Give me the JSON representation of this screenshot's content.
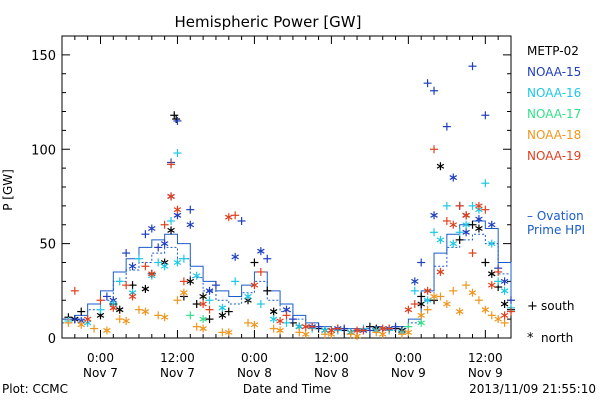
{
  "chart_data": {
    "type": "scatter",
    "title": "Hemispheric Power [GW]",
    "ylabel": "P [GW]",
    "xlabel": "Date and Time",
    "ylim": [
      0,
      160
    ],
    "yticks": [
      0,
      50,
      100,
      150
    ],
    "xlim_hours": [
      -6,
      64
    ],
    "xticks": [
      {
        "hour": 0,
        "time": "0:00",
        "date": "Nov 7"
      },
      {
        "hour": 12,
        "time": "12:00",
        "date": "Nov 7"
      },
      {
        "hour": 24,
        "time": "0:00",
        "date": "Nov 8"
      },
      {
        "hour": 36,
        "time": "12:00",
        "date": "Nov 8"
      },
      {
        "hour": 48,
        "time": "0:00",
        "date": "Nov 9"
      },
      {
        "hour": 60,
        "time": "12:00",
        "date": "Nov 9"
      }
    ],
    "footer_left": "Plot: CCMC",
    "footer_right": "2013/11/09 21:55:10",
    "legend_satellites": [
      {
        "name": "METP-02",
        "color": "#000000"
      },
      {
        "name": "NOAA-15",
        "color": "#1f3fbf"
      },
      {
        "name": "NOAA-16",
        "color": "#1ec8e6"
      },
      {
        "name": "NOAA-17",
        "color": "#33e08a"
      },
      {
        "name": "NOAA-18",
        "color": "#f0961e"
      },
      {
        "name": "NOAA-19",
        "color": "#e0401e"
      }
    ],
    "ovation_label_1": "– Ovation",
    "ovation_label_2": "Prime HPI",
    "ovation_color": "#1a5ccc",
    "marker_legend": [
      {
        "symbol": "+",
        "label": "south"
      },
      {
        "symbol": "*",
        "label": "north"
      }
    ],
    "ovation_north": [
      [
        -6,
        10
      ],
      [
        -4,
        12
      ],
      [
        -2,
        18
      ],
      [
        0,
        25
      ],
      [
        2,
        35
      ],
      [
        4,
        42
      ],
      [
        6,
        48
      ],
      [
        8,
        52
      ],
      [
        10,
        55
      ],
      [
        12,
        50
      ],
      [
        14,
        38
      ],
      [
        16,
        30
      ],
      [
        18,
        25
      ],
      [
        20,
        22
      ],
      [
        22,
        28
      ],
      [
        24,
        35
      ],
      [
        26,
        25
      ],
      [
        28,
        18
      ],
      [
        30,
        12
      ],
      [
        32,
        8
      ],
      [
        34,
        6
      ],
      [
        36,
        5
      ],
      [
        38,
        5
      ],
      [
        40,
        5
      ],
      [
        42,
        6
      ],
      [
        44,
        5
      ],
      [
        46,
        6
      ],
      [
        48,
        10
      ],
      [
        50,
        25
      ],
      [
        52,
        45
      ],
      [
        54,
        55
      ],
      [
        56,
        60
      ],
      [
        58,
        62
      ],
      [
        60,
        58
      ],
      [
        62,
        40
      ],
      [
        64,
        20
      ]
    ],
    "ovation_south": [
      [
        -6,
        8
      ],
      [
        -4,
        10
      ],
      [
        -2,
        15
      ],
      [
        0,
        20
      ],
      [
        2,
        30
      ],
      [
        4,
        36
      ],
      [
        6,
        40
      ],
      [
        8,
        45
      ],
      [
        10,
        48
      ],
      [
        12,
        42
      ],
      [
        14,
        32
      ],
      [
        16,
        25
      ],
      [
        18,
        20
      ],
      [
        20,
        18
      ],
      [
        22,
        24
      ],
      [
        24,
        30
      ],
      [
        26,
        20
      ],
      [
        28,
        14
      ],
      [
        30,
        10
      ],
      [
        32,
        6
      ],
      [
        34,
        5
      ],
      [
        36,
        4
      ],
      [
        38,
        4
      ],
      [
        40,
        4
      ],
      [
        42,
        5
      ],
      [
        44,
        4
      ],
      [
        46,
        5
      ],
      [
        48,
        8
      ],
      [
        50,
        20
      ],
      [
        52,
        38
      ],
      [
        54,
        48
      ],
      [
        56,
        52
      ],
      [
        58,
        55
      ],
      [
        60,
        50
      ],
      [
        62,
        34
      ],
      [
        64,
        17
      ]
    ],
    "series": [
      {
        "name": "METP-02",
        "color": "#000000",
        "south": [
          [
            -5,
            11
          ],
          [
            -3,
            14
          ],
          [
            2,
            18
          ],
          [
            5,
            28
          ],
          [
            8,
            34
          ],
          [
            11.5,
            118
          ],
          [
            11.8,
            116
          ],
          [
            13,
            22
          ],
          [
            15,
            18
          ],
          [
            17,
            10
          ],
          [
            20,
            14
          ],
          [
            24,
            40
          ],
          [
            26,
            25
          ],
          [
            30,
            8
          ],
          [
            34,
            5
          ],
          [
            38,
            4
          ],
          [
            42,
            6
          ],
          [
            46,
            5
          ],
          [
            50,
            22
          ],
          [
            52,
            20
          ],
          [
            56,
            52
          ],
          [
            58,
            60
          ],
          [
            60,
            40
          ],
          [
            62,
            27
          ],
          [
            64,
            15
          ]
        ],
        "north": [
          [
            -4,
            10
          ],
          [
            0,
            12
          ],
          [
            3,
            15
          ],
          [
            7,
            26
          ],
          [
            10,
            40
          ],
          [
            11,
            57
          ],
          [
            14,
            30
          ],
          [
            16,
            22
          ],
          [
            19,
            12
          ],
          [
            23,
            20
          ],
          [
            27,
            14
          ],
          [
            31,
            6
          ],
          [
            35,
            4
          ],
          [
            39,
            3
          ],
          [
            43,
            5
          ],
          [
            47,
            4
          ],
          [
            50,
            18
          ],
          [
            53,
            91
          ],
          [
            57,
            65
          ],
          [
            59,
            58
          ],
          [
            61,
            34
          ],
          [
            63,
            18
          ]
        ]
      },
      {
        "name": "NOAA-15",
        "color": "#1f3fbf",
        "south": [
          [
            -4,
            10
          ],
          [
            1,
            22
          ],
          [
            4,
            45
          ],
          [
            7,
            55
          ],
          [
            9,
            48
          ],
          [
            11,
            93
          ],
          [
            12,
            115
          ],
          [
            14,
            68
          ],
          [
            18,
            28
          ],
          [
            22,
            62
          ],
          [
            26,
            42
          ],
          [
            30,
            10
          ],
          [
            34,
            6
          ],
          [
            38,
            5
          ],
          [
            42,
            4
          ],
          [
            46,
            6
          ],
          [
            50,
            40
          ],
          [
            51,
            135
          ],
          [
            52,
            131
          ],
          [
            54,
            112
          ],
          [
            56,
            70
          ],
          [
            58,
            144
          ],
          [
            60,
            118
          ],
          [
            62,
            37
          ],
          [
            64,
            20
          ]
        ],
        "north": [
          [
            -3,
            9
          ],
          [
            2,
            20
          ],
          [
            5,
            38
          ],
          [
            8,
            58
          ],
          [
            10,
            50
          ],
          [
            11,
            75
          ],
          [
            12,
            65
          ],
          [
            14,
            60
          ],
          [
            17,
            25
          ],
          [
            21,
            43
          ],
          [
            25,
            46
          ],
          [
            29,
            15
          ],
          [
            33,
            6
          ],
          [
            37,
            5
          ],
          [
            41,
            4
          ],
          [
            45,
            5
          ],
          [
            49,
            30
          ],
          [
            52,
            65
          ],
          [
            55,
            85
          ],
          [
            57,
            56
          ],
          [
            59,
            63
          ],
          [
            61,
            60
          ],
          [
            63,
            30
          ]
        ]
      },
      {
        "name": "NOAA-16",
        "color": "#1ec8e6",
        "south": [
          [
            -5,
            9
          ],
          [
            0,
            15
          ],
          [
            3,
            30
          ],
          [
            6,
            42
          ],
          [
            9,
            40
          ],
          [
            11,
            62
          ],
          [
            12,
            98
          ],
          [
            13,
            42
          ],
          [
            17,
            20
          ],
          [
            21,
            30
          ],
          [
            25,
            18
          ],
          [
            29,
            8
          ],
          [
            33,
            5
          ],
          [
            37,
            4
          ],
          [
            41,
            5
          ],
          [
            45,
            4
          ],
          [
            49,
            25
          ],
          [
            52,
            56
          ],
          [
            54,
            70
          ],
          [
            56,
            56
          ],
          [
            58,
            70
          ],
          [
            60,
            82
          ],
          [
            62,
            30
          ],
          [
            64,
            16
          ]
        ],
        "north": [
          [
            -2,
            8
          ],
          [
            2,
            18
          ],
          [
            5,
            24
          ],
          [
            8,
            33
          ],
          [
            10,
            38
          ],
          [
            12,
            40
          ],
          [
            15,
            33
          ],
          [
            19,
            16
          ],
          [
            23,
            22
          ],
          [
            27,
            10
          ],
          [
            31,
            6
          ],
          [
            35,
            4
          ],
          [
            39,
            3
          ],
          [
            43,
            4
          ],
          [
            47,
            3
          ],
          [
            51,
            20
          ],
          [
            53,
            52
          ],
          [
            55,
            50
          ],
          [
            57,
            60
          ],
          [
            59,
            68
          ],
          [
            61,
            50
          ],
          [
            63,
            25
          ]
        ]
      },
      {
        "name": "NOAA-17",
        "color": "#33e08a",
        "south": [
          [
            14,
            12
          ],
          [
            48,
            6
          ]
        ],
        "north": [
          [
            16,
            10
          ],
          [
            50,
            8
          ]
        ]
      },
      {
        "name": "NOAA-18",
        "color": "#f0961e",
        "south": [
          [
            -5,
            8
          ],
          [
            -1,
            5
          ],
          [
            3,
            10
          ],
          [
            6,
            15
          ],
          [
            9,
            12
          ],
          [
            12,
            20
          ],
          [
            15,
            6
          ],
          [
            19,
            3
          ],
          [
            23,
            8
          ],
          [
            27,
            5
          ],
          [
            31,
            3
          ],
          [
            35,
            2
          ],
          [
            39,
            2
          ],
          [
            43,
            3
          ],
          [
            47,
            2
          ],
          [
            51,
            15
          ],
          [
            53,
            22
          ],
          [
            55,
            25
          ],
          [
            57,
            28
          ],
          [
            59,
            20
          ],
          [
            61,
            12
          ],
          [
            63,
            8
          ]
        ],
        "north": [
          [
            -3,
            7
          ],
          [
            1,
            4
          ],
          [
            4,
            9
          ],
          [
            7,
            14
          ],
          [
            10,
            11
          ],
          [
            13,
            24
          ],
          [
            16,
            5
          ],
          [
            20,
            3
          ],
          [
            24,
            7
          ],
          [
            28,
            4
          ],
          [
            32,
            2
          ],
          [
            36,
            2
          ],
          [
            40,
            1
          ],
          [
            44,
            2
          ],
          [
            48,
            3
          ],
          [
            50,
            12
          ],
          [
            52,
            22
          ],
          [
            54,
            18
          ],
          [
            56,
            14
          ],
          [
            58,
            24
          ],
          [
            60,
            15
          ],
          [
            62,
            10
          ]
        ]
      },
      {
        "name": "NOAA-19",
        "color": "#e0401e",
        "south": [
          [
            -4,
            25
          ],
          [
            0,
            20
          ],
          [
            4,
            28
          ],
          [
            7,
            38
          ],
          [
            10,
            60
          ],
          [
            11,
            92
          ],
          [
            13,
            30
          ],
          [
            17,
            15
          ],
          [
            21,
            65
          ],
          [
            25,
            35
          ],
          [
            29,
            12
          ],
          [
            33,
            6
          ],
          [
            37,
            5
          ],
          [
            41,
            4
          ],
          [
            45,
            5
          ],
          [
            49,
            18
          ],
          [
            52,
            100
          ],
          [
            54,
            62
          ],
          [
            56,
            70
          ],
          [
            58,
            45
          ],
          [
            60,
            68
          ],
          [
            62,
            35
          ],
          [
            64,
            14
          ]
        ],
        "north": [
          [
            -2,
            10
          ],
          [
            2,
            16
          ],
          [
            5,
            22
          ],
          [
            8,
            34
          ],
          [
            11,
            75
          ],
          [
            12,
            68
          ],
          [
            16,
            18
          ],
          [
            20,
            64
          ],
          [
            24,
            28
          ],
          [
            28,
            9
          ],
          [
            32,
            6
          ],
          [
            36,
            4
          ],
          [
            40,
            4
          ],
          [
            44,
            5
          ],
          [
            48,
            15
          ],
          [
            51,
            25
          ],
          [
            53,
            35
          ],
          [
            55,
            60
          ],
          [
            57,
            65
          ],
          [
            59,
            70
          ],
          [
            61,
            28
          ],
          [
            63,
            12
          ]
        ]
      }
    ]
  }
}
